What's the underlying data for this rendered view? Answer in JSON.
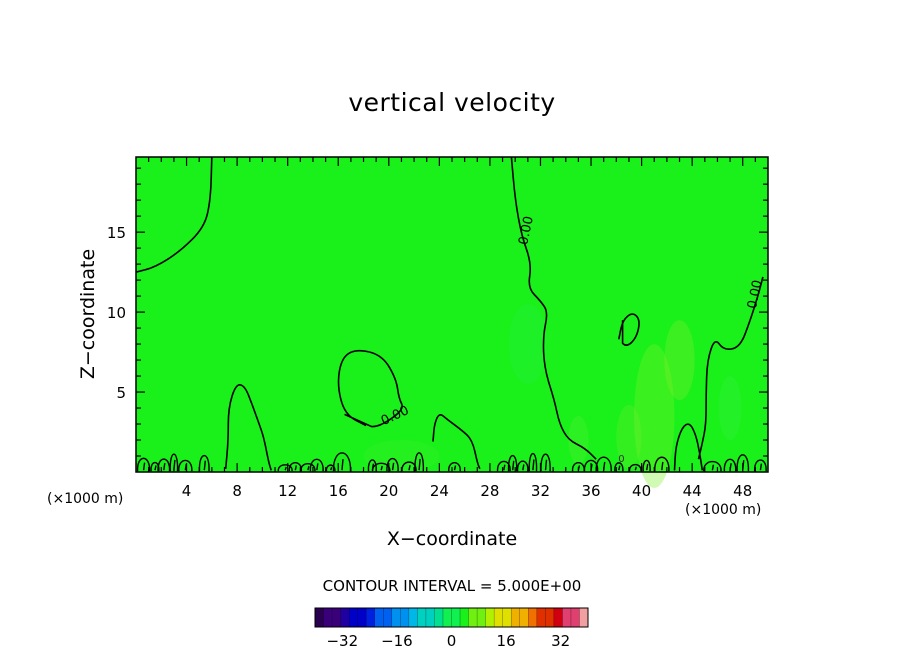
{
  "chart_data": {
    "type": "heatmap",
    "title": "vertical velocity",
    "xlabel": "X−coordinate",
    "ylabel": "Z−coordinate",
    "x_unit": "(×1000 m)",
    "xlim": [
      0,
      50
    ],
    "ylim": [
      0,
      19.7
    ],
    "x_ticks": [
      4,
      8,
      12,
      16,
      20,
      24,
      28,
      32,
      36,
      40,
      44,
      48
    ],
    "y_ticks": [
      5,
      10,
      15
    ],
    "field_fill_color": "#1af01a",
    "contour_interval_text": "CONTOUR INTERVAL = 5.000E+00",
    "contour_labels": [
      "0.00",
      "0.00",
      "0.00",
      "0.00",
      "0"
    ],
    "contours": [
      {
        "name": "top-left",
        "points": [
          [
            0,
            12.5
          ],
          [
            1.5,
            12.8
          ],
          [
            3.5,
            13.8
          ],
          [
            5.4,
            15.3
          ],
          [
            5.9,
            17
          ],
          [
            6,
            19.7
          ]
        ]
      },
      {
        "name": "center-right",
        "points": [
          [
            29.7,
            19.7
          ],
          [
            30,
            17
          ],
          [
            30.5,
            14.8
          ],
          [
            31.3,
            13
          ],
          [
            31,
            11.5
          ],
          [
            32,
            10.7
          ],
          [
            32.6,
            10
          ],
          [
            32.2,
            8.5
          ],
          [
            32.3,
            6.5
          ],
          [
            33.1,
            4.5
          ],
          [
            33.5,
            3
          ],
          [
            34.2,
            2
          ],
          [
            35.5,
            1.5
          ],
          [
            36.4,
            0.8
          ]
        ]
      },
      {
        "name": "right",
        "points": [
          [
            49.6,
            12.2
          ],
          [
            49.2,
            11
          ],
          [
            48.6,
            9.5
          ],
          [
            47.8,
            7.8
          ],
          [
            46.5,
            7.6
          ],
          [
            45.8,
            8.4
          ],
          [
            45.2,
            7
          ],
          [
            45.1,
            5
          ],
          [
            45.1,
            3
          ],
          [
            44.8,
            1.8
          ],
          [
            44.5,
            0.8
          ]
        ]
      },
      {
        "name": "blob-left-center",
        "points": [
          [
            18.2,
            2.9
          ],
          [
            16.5,
            3.6
          ],
          [
            15.9,
            5.5
          ],
          [
            16.3,
            7.2
          ],
          [
            17.5,
            7.7
          ],
          [
            19.5,
            7.3
          ],
          [
            20.6,
            5.8
          ],
          [
            20.8,
            4.6
          ],
          [
            21.2,
            4
          ],
          [
            20.2,
            3.3
          ],
          [
            19,
            2.8
          ]
        ]
      },
      {
        "name": "blob-right",
        "points": [
          [
            38.2,
            8.3
          ],
          [
            38.5,
            9.5
          ],
          [
            39.3,
            10
          ],
          [
            39.9,
            9.5
          ],
          [
            39.6,
            8.4
          ],
          [
            38.8,
            7.8
          ]
        ]
      },
      {
        "name": "plume-8",
        "points": [
          [
            7.1,
            0.2
          ],
          [
            7.3,
            2
          ],
          [
            7.3,
            4
          ],
          [
            7.9,
            5.5
          ],
          [
            8.6,
            5.4
          ],
          [
            9.2,
            4.2
          ],
          [
            9.7,
            3.1
          ],
          [
            10.1,
            2.2
          ],
          [
            10.5,
            0.6
          ],
          [
            10.7,
            0.1
          ]
        ]
      },
      {
        "name": "plume-24",
        "points": [
          [
            23.5,
            1.9
          ],
          [
            23.6,
            3
          ],
          [
            24,
            3.7
          ],
          [
            24.6,
            3.3
          ],
          [
            25.8,
            2.6
          ],
          [
            26.6,
            2
          ],
          [
            27,
            0.6
          ],
          [
            27.2,
            0.2
          ]
        ]
      },
      {
        "name": "plume-42",
        "points": [
          [
            42.6,
            0.1
          ],
          [
            42.7,
            1.6
          ],
          [
            43.2,
            2.8
          ],
          [
            43.8,
            3.1
          ],
          [
            44.3,
            2.3
          ],
          [
            44.6,
            1.2
          ],
          [
            44.8,
            0.1
          ]
        ]
      }
    ],
    "colorbar": {
      "min": -40,
      "max": 40,
      "ticks": [
        -32,
        -16,
        0,
        16,
        32
      ],
      "tick_labels": [
        "−32",
        "−16",
        "0",
        "16",
        "32"
      ],
      "colors": [
        "#2a0050",
        "#3a007a",
        "#2000a0",
        "#0000c8",
        "#0020e0",
        "#0060f0",
        "#0090f0",
        "#00b8e8",
        "#00d0c0",
        "#00e090",
        "#10f050",
        "#1af01a",
        "#70f010",
        "#b0f000",
        "#e0e000",
        "#f0b000",
        "#f07000",
        "#e03000",
        "#d00010",
        "#e04070",
        "#f0a0a0"
      ]
    }
  }
}
